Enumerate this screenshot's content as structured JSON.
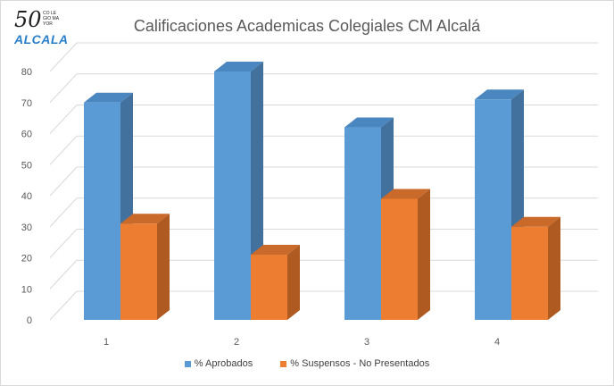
{
  "logo": {
    "number": "50",
    "small_text": "CO LE GIO MA YOR",
    "word": "ALCALA"
  },
  "colors": {
    "series1": "#5b9bd5",
    "series1_side": "#41719c",
    "series1_top": "#4a86c0",
    "series2": "#ed7d31",
    "series2_side": "#ae5a21",
    "series2_top": "#c9692a",
    "grid": "#d9d9d9",
    "axis_text": "#595959"
  },
  "chart_data": {
    "type": "bar",
    "title": "Calificaciones Academicas Colegiales CM Alcalá",
    "categories": [
      "1",
      "2",
      "3",
      "4"
    ],
    "series": [
      {
        "name": "% Aprobados",
        "values": [
          70,
          80,
          62,
          71
        ]
      },
      {
        "name": "% Suspensos - No Presentados",
        "values": [
          31,
          21,
          39,
          30
        ]
      }
    ],
    "ylim": [
      0,
      80
    ],
    "yticks": [
      0,
      10,
      20,
      30,
      40,
      50,
      60,
      70,
      80
    ],
    "grid": true,
    "legend_position": "bottom",
    "xlabel": "",
    "ylabel": ""
  }
}
